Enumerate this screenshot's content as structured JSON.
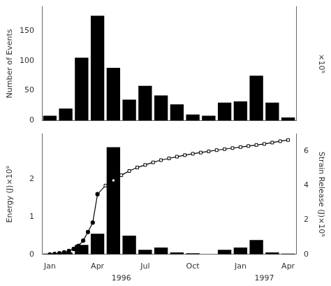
{
  "chart_data": [
    {
      "type": "bar",
      "categories": [
        "Jan",
        null,
        null,
        "Apr",
        null,
        null,
        "Jul",
        null,
        null,
        "Oct",
        null,
        null,
        "Jan",
        null,
        null,
        "Apr"
      ],
      "values": [
        8,
        20,
        105,
        175,
        88,
        35,
        58,
        42,
        27,
        10,
        8,
        30,
        32,
        75,
        30,
        5
      ],
      "color": "#000000",
      "ylim": [
        0,
        190
      ],
      "yticks": [
        0,
        50,
        100,
        150
      ],
      "ylabel": "Number of Events",
      "y2label": "×10⁵",
      "grid": false,
      "tick_labels": "y"
    },
    {
      "type": "bar",
      "categories": [
        "Jan",
        null,
        null,
        "Apr",
        null,
        null,
        "Jul",
        null,
        null,
        "Oct",
        null,
        null,
        "Jan",
        null,
        null,
        "Apr"
      ],
      "series": [
        {
          "type": "bar",
          "color": "#000000",
          "values": [
            0.02,
            0.05,
            0.25,
            0.55,
            2.85,
            0.5,
            0.12,
            0.18,
            0.05,
            0.03,
            0.0,
            0.12,
            0.18,
            0.38,
            0.05,
            0.02
          ]
        },
        {
          "type": "line",
          "axis": "y2",
          "color": "#000000",
          "marker": "none",
          "line_style": "solid",
          "x": [
            0.0,
            0.3,
            0.6,
            0.9,
            1.2,
            1.5,
            1.8,
            2.1,
            2.4,
            2.7,
            3.0,
            3.5,
            4.0,
            4.5,
            5.0,
            5.5,
            6.0,
            6.5,
            7.0,
            7.5,
            8.0,
            8.5,
            9.0,
            9.5,
            10.0,
            10.5,
            11.0,
            11.5,
            12.0,
            12.5,
            13.0,
            13.5,
            14.0,
            14.5,
            15.0
          ],
          "values": [
            0.0,
            0.03,
            0.07,
            0.12,
            0.2,
            0.32,
            0.5,
            0.8,
            1.3,
            1.85,
            3.5,
            4.0,
            4.3,
            4.6,
            4.85,
            5.05,
            5.2,
            5.35,
            5.48,
            5.58,
            5.68,
            5.77,
            5.85,
            5.92,
            5.99,
            6.06,
            6.12,
            6.18,
            6.24,
            6.3,
            6.36,
            6.42,
            6.5,
            6.58,
            6.65
          ]
        },
        {
          "type": "scatter",
          "axis": "y2",
          "color": "#000000",
          "marker": "circle",
          "line_style": "none",
          "x": [
            0.0,
            0.3,
            0.6,
            0.9,
            1.2,
            1.5,
            1.8,
            2.1,
            2.4,
            2.7,
            3.0
          ],
          "values": [
            0.0,
            0.03,
            0.07,
            0.12,
            0.2,
            0.32,
            0.5,
            0.8,
            1.3,
            1.85,
            3.5
          ]
        },
        {
          "type": "scatter",
          "axis": "y2",
          "color": "#000000",
          "marker": "square-open",
          "line_style": "none",
          "x": [
            3.5,
            4.0,
            4.5,
            5.0,
            5.5,
            6.0,
            6.5,
            7.0,
            7.5,
            8.0,
            8.5,
            9.0,
            9.5,
            10.0,
            10.5,
            11.0,
            11.5,
            12.0,
            12.5,
            13.0,
            13.5,
            14.0,
            14.5,
            15.0
          ],
          "values": [
            4.0,
            4.3,
            4.6,
            4.85,
            5.05,
            5.2,
            5.35,
            5.48,
            5.58,
            5.68,
            5.77,
            5.85,
            5.92,
            5.99,
            6.06,
            6.12,
            6.18,
            6.24,
            6.3,
            6.36,
            6.42,
            6.5,
            6.58,
            6.65
          ]
        }
      ],
      "ylim": [
        0,
        3.2
      ],
      "yticks": [
        0,
        1,
        2
      ],
      "ylabel": "Energy (J)×10⁹",
      "y2lim": [
        0,
        7.0
      ],
      "y2ticks": [
        0,
        2,
        4,
        6
      ],
      "y2label": "Strain Release (J)×10⁵",
      "grid": false,
      "annotations": [
        {
          "text": "1996",
          "x": 4.5
        },
        {
          "text": "1997",
          "x": 13.5
        }
      ]
    }
  ]
}
